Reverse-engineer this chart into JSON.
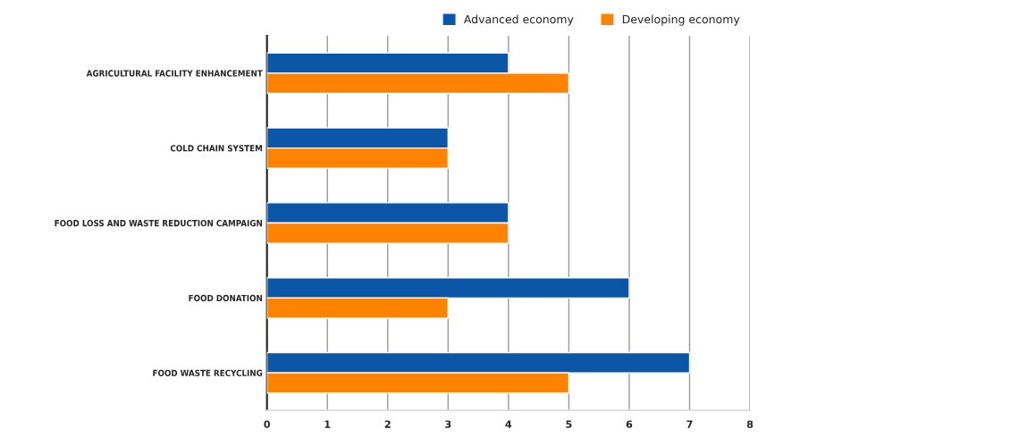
{
  "chart_data": {
    "type": "bar",
    "orientation": "horizontal",
    "categories": [
      "AGRICULTURAL FACILITY ENHANCEMENT",
      "COLD CHAIN SYSTEM",
      "FOOD LOSS AND WASTE REDUCTION CAMPAIGN",
      "FOOD DONATION",
      "FOOD WASTE RECYCLING"
    ],
    "series": [
      {
        "name": "Advanced economy",
        "color": "#0b56a6",
        "values": [
          4,
          3,
          4,
          6,
          7
        ]
      },
      {
        "name": "Developing economy",
        "color": "#ff8200",
        "values": [
          5,
          3,
          4,
          3,
          5
        ]
      }
    ],
    "xlim": [
      0,
      8
    ],
    "xticks": [
      0,
      1,
      2,
      3,
      4,
      5,
      6,
      7,
      8
    ],
    "grid": "x",
    "legend": "top right"
  }
}
